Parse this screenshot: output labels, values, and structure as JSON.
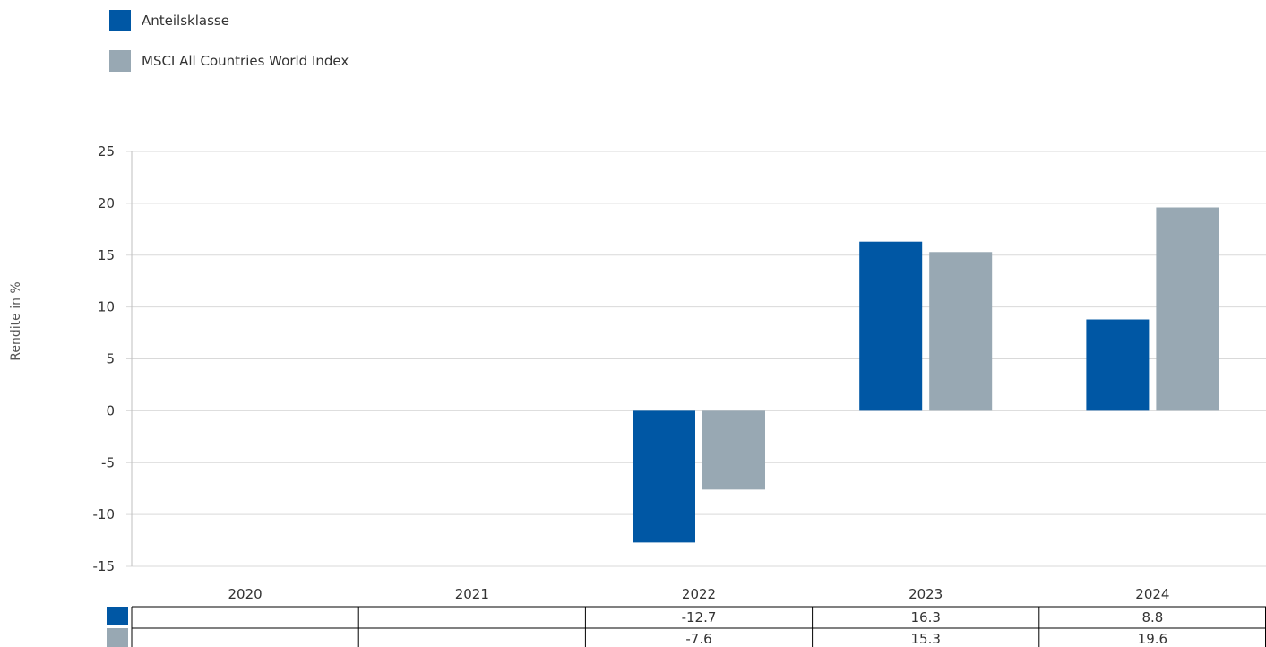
{
  "chart_data": {
    "type": "bar",
    "categories": [
      "2020",
      "2021",
      "2022",
      "2023",
      "2024"
    ],
    "series": [
      {
        "name": "Anteilsklasse",
        "color": "#0057A4",
        "values": [
          null,
          null,
          -12.7,
          16.3,
          8.8
        ],
        "table_values": [
          "",
          "",
          "-12.7",
          "16.3",
          "8.8"
        ]
      },
      {
        "name": "MSCI All Countries World Index",
        "color": "#98A8B3",
        "values": [
          null,
          null,
          -7.6,
          15.3,
          19.6
        ],
        "table_values": [
          "",
          "",
          "-7.6",
          "15.3",
          "19.6"
        ]
      }
    ],
    "ylabel": "Rendite in %",
    "ylim": [
      -15,
      25
    ],
    "yticks": [
      25,
      20,
      15,
      10,
      5,
      0,
      -5,
      -10,
      -15
    ],
    "grid": true,
    "legend_position": "top-left",
    "data_table": true
  }
}
